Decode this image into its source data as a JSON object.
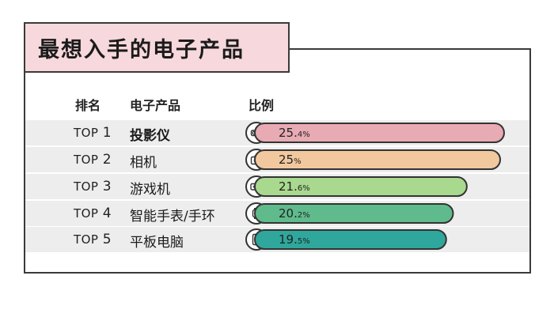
{
  "title": "最想入手的电子产品",
  "headers": {
    "rank": "排名",
    "product": "电子产品",
    "ratio": "比例"
  },
  "rows": [
    {
      "rank_prefix": "TOP",
      "rank_num": "1",
      "product": "投影仪",
      "value": 25.4,
      "value_main": "25.",
      "value_dec": "4",
      "color": "#e8aab3",
      "icon": "projector-icon"
    },
    {
      "rank_prefix": "TOP",
      "rank_num": "2",
      "product": "相机",
      "value": 25,
      "value_main": "25",
      "value_dec": "",
      "color": "#f2c89f",
      "icon": "camera-icon"
    },
    {
      "rank_prefix": "TOP",
      "rank_num": "3",
      "product": "游戏机",
      "value": 21.6,
      "value_main": "21.",
      "value_dec": "6",
      "color": "#a9d98e",
      "icon": "game-console-icon"
    },
    {
      "rank_prefix": "TOP",
      "rank_num": "4",
      "product": "智能手表/手环",
      "value": 20.2,
      "value_main": "20.",
      "value_dec": "2",
      "color": "#5fbb8c",
      "icon": "smartwatch-icon"
    },
    {
      "rank_prefix": "TOP",
      "rank_num": "5",
      "product": "平板电脑",
      "value": 19.5,
      "value_main": "19.",
      "value_dec": "5",
      "color": "#2fa79c",
      "icon": "tablet-icon"
    }
  ],
  "chart_data": {
    "type": "bar",
    "orientation": "horizontal",
    "title": "最想入手的电子产品",
    "categories": [
      "投影仪",
      "相机",
      "游戏机",
      "智能手表/手环",
      "平板电脑"
    ],
    "values": [
      25.4,
      25,
      21.6,
      20.2,
      19.5
    ],
    "unit": "%",
    "grid": false
  }
}
